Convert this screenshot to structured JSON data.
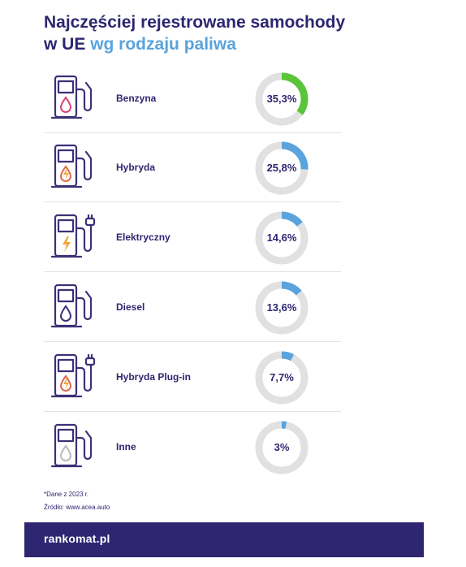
{
  "title": {
    "line1": "Najczęściej rejestrowane samochody",
    "line2_plain": "w UE ",
    "line2_accent": "wg rodzaju paliwa"
  },
  "colors": {
    "navy": "#2d2670",
    "accent_green": "#5ac43a",
    "accent_blue": "#5aa3dc",
    "track": "#e1e1e1"
  },
  "chart_data": {
    "type": "donut",
    "unit": "%",
    "categories": [
      "Benzyna",
      "Hybryda",
      "Elektryczny",
      "Diesel",
      "Hybryda Plug-in",
      "Inne"
    ],
    "values": [
      35.3,
      25.8,
      14.6,
      13.6,
      7.7,
      3
    ],
    "value_labels": [
      "35,3%",
      "25,8%",
      "14,6%",
      "13,6%",
      "7,7%",
      "3%"
    ],
    "icons": [
      "petrol-pump-icon",
      "hybrid-pump-icon",
      "ev-charger-icon",
      "diesel-pump-icon",
      "plugin-hybrid-charger-icon",
      "other-fuel-pump-icon"
    ],
    "ring_colors": [
      "#5ac43a",
      "#5aa3dc",
      "#5aa3dc",
      "#5aa3dc",
      "#5aa3dc",
      "#5aa3dc"
    ]
  },
  "footnotes": {
    "note": "*Dane z 2023 r.",
    "source": "Źródło: www.acea.auto"
  },
  "brand": {
    "logo_prefix": "rank",
    "logo_mark": "o",
    "logo_suffix": "mat.pl"
  }
}
